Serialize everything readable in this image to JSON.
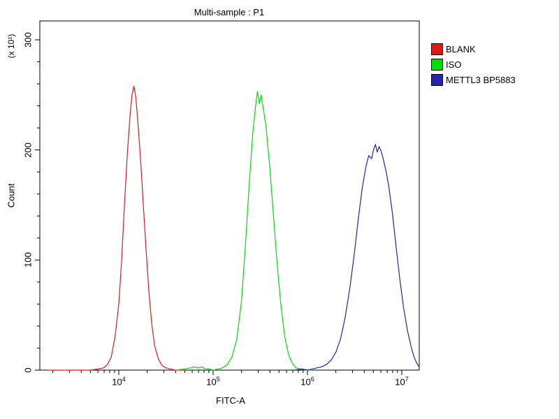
{
  "title": "Multi-sample : P1",
  "legend": {
    "items": [
      {
        "label": "BLANK",
        "color": "#e01818"
      },
      {
        "label": "ISO",
        "color": "#00dd00"
      },
      {
        "label": "METTL3 BP5883",
        "color": "#2424aa"
      }
    ]
  },
  "chart_data": {
    "type": "line",
    "subtype": "flow-cytometry-histogram",
    "title": "Multi-sample : P1",
    "xlabel": "FITC-A",
    "ylabel": "Count",
    "y_unit_label": "(x 10¹)",
    "x_scale": "log10",
    "x_range_log10": [
      3.163,
      7.185
    ],
    "ylim": [
      0,
      310
    ],
    "x_tick_exponents": [
      4,
      5,
      6,
      7
    ],
    "y_ticks": [
      0,
      100,
      200,
      300
    ],
    "grid": false,
    "legend_position": "top-right",
    "series": [
      {
        "name": "BLANK",
        "color": "#e01818",
        "peak_x": 14000,
        "peak_count": 258,
        "points": [
          [
            3.25,
            0
          ],
          [
            3.6,
            0
          ],
          [
            3.7,
            0
          ],
          [
            3.78,
            1
          ],
          [
            3.84,
            2
          ],
          [
            3.88,
            5
          ],
          [
            3.92,
            12
          ],
          [
            3.96,
            30
          ],
          [
            4.0,
            60
          ],
          [
            4.03,
            100
          ],
          [
            4.06,
            150
          ],
          [
            4.09,
            195
          ],
          [
            4.12,
            232
          ],
          [
            4.14,
            250
          ],
          [
            4.16,
            258
          ],
          [
            4.18,
            248
          ],
          [
            4.2,
            228
          ],
          [
            4.23,
            192
          ],
          [
            4.26,
            150
          ],
          [
            4.29,
            108
          ],
          [
            4.32,
            70
          ],
          [
            4.35,
            42
          ],
          [
            4.38,
            22
          ],
          [
            4.42,
            10
          ],
          [
            4.46,
            4
          ],
          [
            4.5,
            2
          ],
          [
            4.55,
            1
          ],
          [
            4.6,
            0
          ],
          [
            4.7,
            0
          ]
        ]
      },
      {
        "name": "ISO",
        "color": "#00dd00",
        "peak_x": 300000,
        "peak_count": 253,
        "points": [
          [
            4.6,
            0
          ],
          [
            4.7,
            1
          ],
          [
            4.76,
            2
          ],
          [
            4.8,
            3
          ],
          [
            4.84,
            2
          ],
          [
            4.88,
            3
          ],
          [
            4.92,
            1
          ],
          [
            4.96,
            1
          ],
          [
            5.0,
            0
          ],
          [
            5.05,
            1
          ],
          [
            5.1,
            2
          ],
          [
            5.15,
            5
          ],
          [
            5.2,
            12
          ],
          [
            5.25,
            28
          ],
          [
            5.3,
            62
          ],
          [
            5.34,
            110
          ],
          [
            5.38,
            165
          ],
          [
            5.42,
            215
          ],
          [
            5.45,
            240
          ],
          [
            5.47,
            253
          ],
          [
            5.49,
            242
          ],
          [
            5.51,
            250
          ],
          [
            5.53,
            238
          ],
          [
            5.56,
            222
          ],
          [
            5.6,
            185
          ],
          [
            5.64,
            140
          ],
          [
            5.68,
            95
          ],
          [
            5.72,
            58
          ],
          [
            5.76,
            30
          ],
          [
            5.8,
            14
          ],
          [
            5.84,
            6
          ],
          [
            5.88,
            2
          ],
          [
            5.93,
            1
          ],
          [
            6.0,
            0
          ],
          [
            6.05,
            0
          ]
        ]
      },
      {
        "name": "METTL3 BP5883",
        "color": "#2424aa",
        "peak_x": 5200000,
        "peak_count": 205,
        "points": [
          [
            5.85,
            0
          ],
          [
            5.95,
            1
          ],
          [
            6.0,
            0
          ],
          [
            6.05,
            1
          ],
          [
            6.1,
            2
          ],
          [
            6.15,
            3
          ],
          [
            6.2,
            5
          ],
          [
            6.25,
            9
          ],
          [
            6.3,
            16
          ],
          [
            6.35,
            28
          ],
          [
            6.4,
            48
          ],
          [
            6.45,
            75
          ],
          [
            6.5,
            108
          ],
          [
            6.54,
            138
          ],
          [
            6.58,
            165
          ],
          [
            6.62,
            185
          ],
          [
            6.65,
            195
          ],
          [
            6.68,
            192
          ],
          [
            6.7,
            200
          ],
          [
            6.72,
            205
          ],
          [
            6.74,
            198
          ],
          [
            6.76,
            203
          ],
          [
            6.78,
            199
          ],
          [
            6.8,
            193
          ],
          [
            6.83,
            182
          ],
          [
            6.86,
            168
          ],
          [
            6.9,
            143
          ],
          [
            6.94,
            112
          ],
          [
            6.98,
            82
          ],
          [
            7.02,
            56
          ],
          [
            7.06,
            36
          ],
          [
            7.1,
            21
          ],
          [
            7.13,
            12
          ],
          [
            7.16,
            6
          ],
          [
            7.185,
            3
          ]
        ]
      }
    ]
  }
}
